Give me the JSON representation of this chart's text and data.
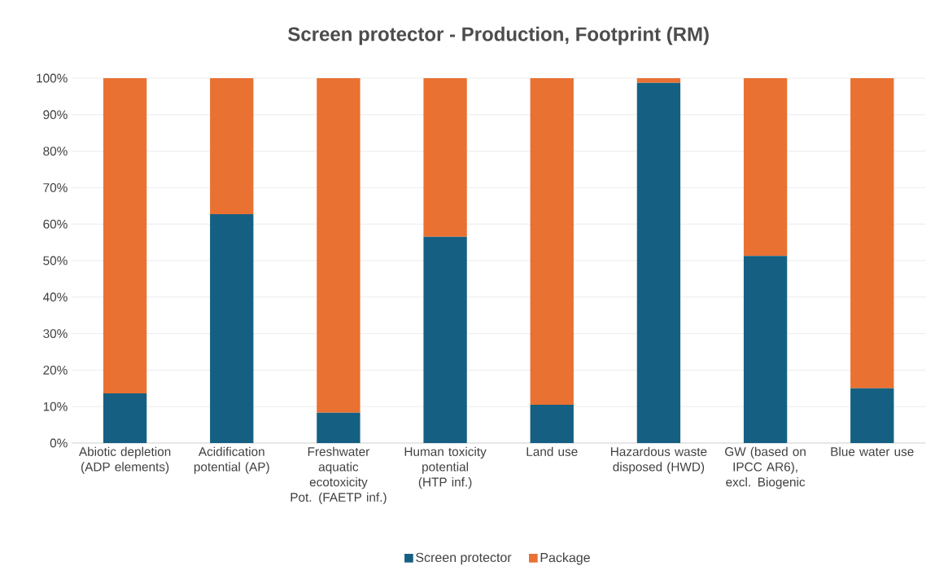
{
  "chart_data": {
    "type": "bar",
    "title": "Screen protector - Production, Footprint (RM)",
    "stacked": true,
    "categories": [
      "Abiotic depletion (ADP elements)",
      "Acidification potential (AP)",
      "Freshwater aquatic ecotoxicity Pot. (FAETP inf.)",
      "Human toxicity potential (HTP inf.)",
      "Land use",
      "Hazardous waste disposed (HWD)",
      "GW (based on IPCC AR6), excl. Biogenic",
      "Blue water use"
    ],
    "series": [
      {
        "name": "Screen protector",
        "color": "#156082",
        "values": [
          13.6,
          62.7,
          8.3,
          56.5,
          10.5,
          98.7,
          51.3,
          15.0
        ]
      },
      {
        "name": "Package",
        "color": "#e97132",
        "values": [
          86.4,
          37.3,
          91.7,
          43.5,
          89.5,
          1.3,
          48.7,
          85.0
        ]
      }
    ],
    "ylim": [
      0,
      100
    ],
    "yticks": [
      {
        "value": 0,
        "label": "0%"
      },
      {
        "value": 10,
        "label": "10%"
      },
      {
        "value": 20,
        "label": "20%"
      },
      {
        "value": 30,
        "label": "30%"
      },
      {
        "value": 40,
        "label": "40%"
      },
      {
        "value": 50,
        "label": "50%"
      },
      {
        "value": 60,
        "label": "60%"
      },
      {
        "value": 70,
        "label": "70%"
      },
      {
        "value": 80,
        "label": "80%"
      },
      {
        "value": 90,
        "label": "90%"
      },
      {
        "value": 100,
        "label": "100%"
      }
    ],
    "grid": "y",
    "legend": "bottom"
  }
}
